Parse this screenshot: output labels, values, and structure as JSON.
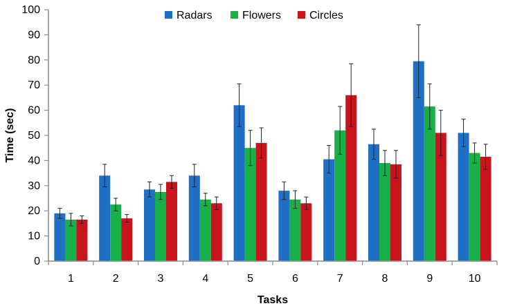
{
  "chart_data": {
    "type": "bar",
    "title": "",
    "xlabel": "Tasks",
    "ylabel": "Time (sec)",
    "ylim": [
      0,
      100
    ],
    "yticks": [
      0,
      10,
      20,
      30,
      40,
      50,
      60,
      70,
      80,
      90,
      100
    ],
    "grid": false,
    "legend_position": "top-center",
    "categories": [
      "1",
      "2",
      "3",
      "4",
      "5",
      "6",
      "7",
      "8",
      "9",
      "10"
    ],
    "series": [
      {
        "name": "Radars",
        "color": "#1f6fc5",
        "values": [
          19,
          34,
          28.5,
          34,
          62,
          28,
          40.5,
          46.5,
          79.5,
          51
        ],
        "error": [
          2,
          4.5,
          3,
          4.5,
          8.5,
          3.5,
          5.5,
          6,
          14.5,
          5.5
        ]
      },
      {
        "name": "Flowers",
        "color": "#18b048",
        "values": [
          16.5,
          22.5,
          27.5,
          24.5,
          45,
          24.5,
          52,
          39,
          61.5,
          43
        ],
        "error": [
          2.5,
          2.5,
          3,
          2.5,
          7,
          3.5,
          9.5,
          5,
          9,
          4
        ]
      },
      {
        "name": "Circles",
        "color": "#c8141c",
        "values": [
          16.5,
          17,
          31.5,
          23,
          47,
          23,
          66,
          38.5,
          51,
          41.5
        ],
        "error": [
          1.5,
          1.5,
          2.5,
          2.5,
          6,
          2.5,
          12.5,
          5.5,
          9,
          5
        ]
      }
    ]
  }
}
